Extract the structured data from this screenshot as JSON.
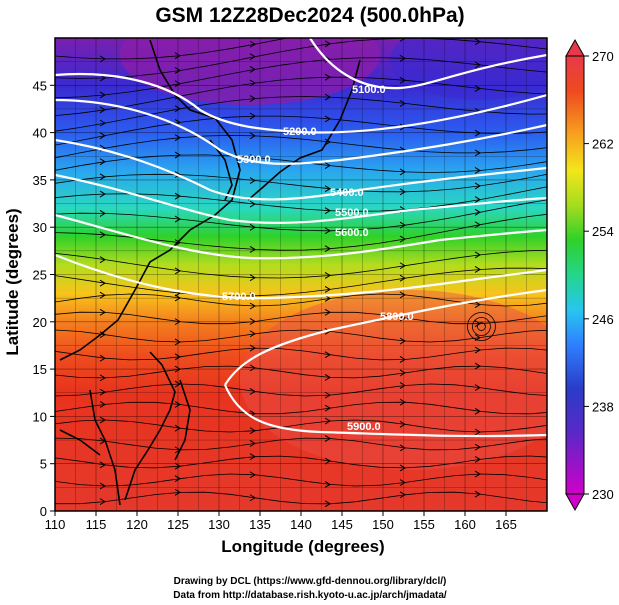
{
  "figure": {
    "title": "GSM 12Z28Dec2024 (500.0hPa)",
    "xlabel": "Longitude (degrees)",
    "ylabel": "Latitude  (degrees)",
    "credit_line1": "Drawing by DCL (https://www.gfd-dennou.org/library/dcl/)",
    "credit_line2": "Data from http://database.rish.kyoto-u.ac.jp/arch/jmadata/"
  },
  "axes": {
    "xlim": [
      110,
      170
    ],
    "ylim": [
      0,
      50
    ],
    "xticks": [
      "110",
      "115",
      "120",
      "125",
      "130",
      "135",
      "140",
      "145",
      "150",
      "155",
      "160",
      "165"
    ],
    "yticks": [
      "0",
      "5",
      "10",
      "15",
      "20",
      "25",
      "30",
      "35",
      "40",
      "45"
    ],
    "grid": true
  },
  "colorbar": {
    "range": [
      230,
      270
    ],
    "ticks": [
      "270",
      "262",
      "254",
      "246",
      "238",
      "230"
    ],
    "colors": [
      "#cc00cc",
      "#7a2ad0",
      "#2a3cc8",
      "#2f7fff",
      "#27c6ef",
      "#24d68a",
      "#2fd12a",
      "#a6dc1e",
      "#f4e51c",
      "#f7a21e",
      "#f36a1e",
      "#e8331e",
      "#e8504a"
    ]
  },
  "contour_labels": [
    "5100.0",
    "5200.0",
    "5300.0",
    "5400.0",
    "5500.0",
    "5600.0",
    "5700.0",
    "5800.0",
    "5900.0"
  ],
  "map_style": {
    "contour_color": "#ffffff",
    "coast_color": "#000000",
    "stream_color": "#000000"
  }
}
